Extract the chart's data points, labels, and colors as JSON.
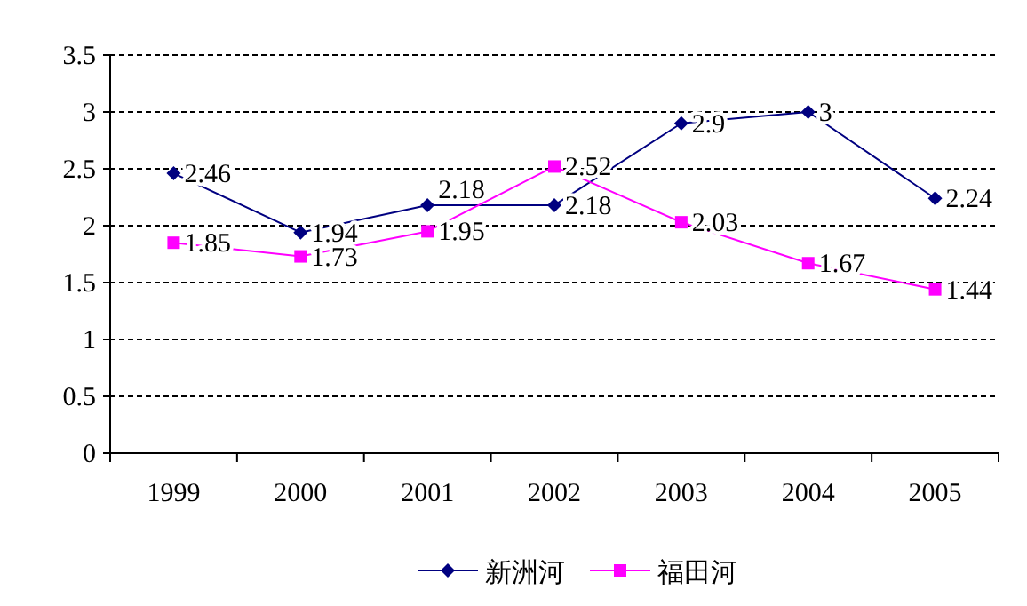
{
  "chart_data": {
    "type": "line",
    "categories": [
      "1999",
      "2000",
      "2001",
      "2002",
      "2003",
      "2004",
      "2005"
    ],
    "series": [
      {
        "name": "新洲河",
        "color": "#000080",
        "marker": "diamond",
        "values": [
          2.46,
          1.94,
          2.18,
          2.18,
          2.9,
          3,
          2.24
        ]
      },
      {
        "name": "福田河",
        "color": "#ff00ff",
        "marker": "square",
        "values": [
          1.85,
          1.73,
          1.95,
          2.52,
          2.03,
          1.67,
          1.44
        ]
      }
    ],
    "ylim": [
      0,
      3.5
    ],
    "yticks": [
      0,
      0.5,
      1,
      1.5,
      2,
      2.5,
      3,
      3.5
    ],
    "grid": "y",
    "legend": "bottom",
    "data_labels": true,
    "line_style": "solid"
  }
}
